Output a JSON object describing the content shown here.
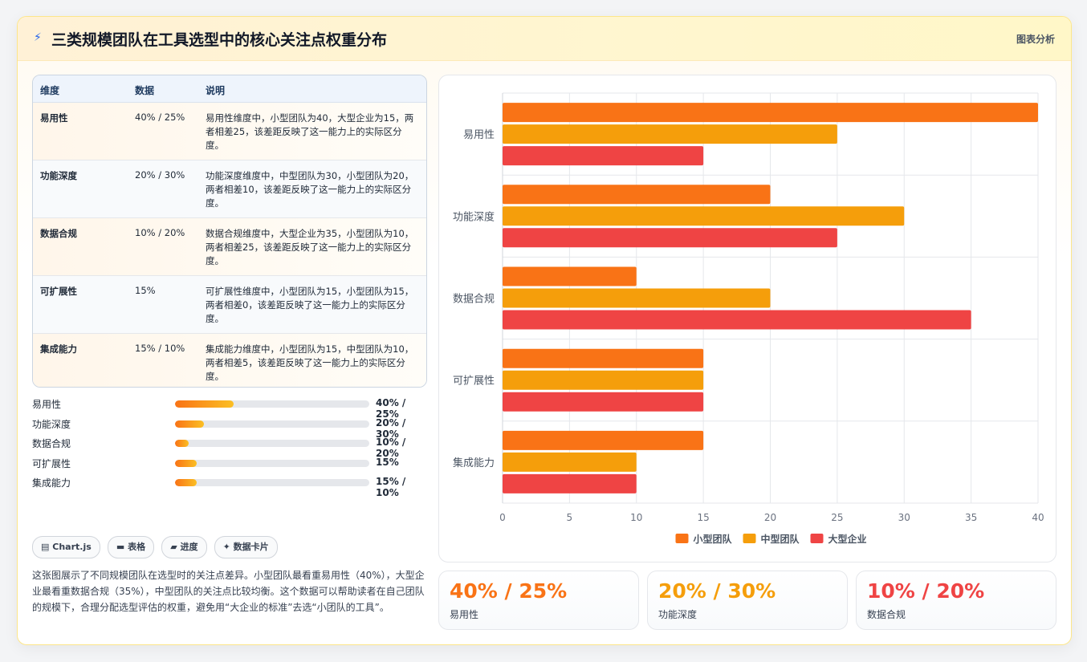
{
  "header": {
    "title": "三类规模团队在工具选型中的核心关注点权重分布",
    "tag": "图表分析"
  },
  "table": {
    "headers": [
      "维度",
      "数据",
      "说明"
    ],
    "rows": [
      {
        "dim": "易用性",
        "data": "40% / 25%",
        "note": "易用性维度中，小型团队为40，大型企业为15，两者相差25，该差距反映了这一能力上的实际区分度。"
      },
      {
        "dim": "功能深度",
        "data": "20% / 30%",
        "note": "功能深度维度中，中型团队为30，小型团队为20，两者相差10，该差距反映了这一能力上的实际区分度。"
      },
      {
        "dim": "数据合规",
        "data": "10% / 20%",
        "note": "数据合规维度中，大型企业为35，小型团队为10，两者相差25，该差距反映了这一能力上的实际区分度。"
      },
      {
        "dim": "可扩展性",
        "data": "15%",
        "note": "可扩展性维度中，小型团队为15，小型团队为15，两者相差0，该差距反映了这一能力上的实际区分度。"
      },
      {
        "dim": "集成能力",
        "data": "15% / 10%",
        "note": "集成能力维度中，小型团队为15，中型团队为10，两者相差5，该差距反映了这一能力上的实际区分度。"
      }
    ]
  },
  "progress": [
    {
      "label": "易用性",
      "value_text": "40% / 25%",
      "level": 0.3
    },
    {
      "label": "功能深度",
      "value_text": "20% / 30%",
      "level": 0.15
    },
    {
      "label": "数据合规",
      "value_text": "10% / 20%",
      "level": 0.07
    },
    {
      "label": "可扩展性",
      "value_text": "15%",
      "level": 0.11
    },
    {
      "label": "集成能力",
      "value_text": "15% / 10%",
      "level": 0.11
    }
  ],
  "chips": [
    {
      "icon": "chart-icon",
      "glyph": "▤",
      "label": "Chart.js"
    },
    {
      "icon": "table-icon",
      "glyph": "▬",
      "label": "表格"
    },
    {
      "icon": "progress-icon",
      "glyph": "▰",
      "label": "进度"
    },
    {
      "icon": "sparkle-icon",
      "glyph": "✦",
      "label": "数据卡片"
    }
  ],
  "description": "这张图展示了不同规模团队在选型时的关注点差异。小型团队最看重易用性（40%），大型企业最看重数据合规（35%），中型团队的关注点比较均衡。这个数据可以帮助读者在自己团队的规模下，合理分配选型评估的权重，避免用“大企业的标准”去选“小团队的工具”。",
  "stats": [
    {
      "value": "40% / 25%",
      "label": "易用性",
      "color": "#f97316"
    },
    {
      "value": "20% / 30%",
      "label": "功能深度",
      "color": "#f59e0b"
    },
    {
      "value": "10% / 20%",
      "label": "数据合规",
      "color": "#ef4444"
    }
  ],
  "chart_data": {
    "type": "bar",
    "orientation": "horizontal",
    "categories": [
      "易用性",
      "功能深度",
      "数据合规",
      "可扩展性",
      "集成能力"
    ],
    "series": [
      {
        "name": "小型团队",
        "values": [
          40,
          20,
          10,
          15,
          15
        ],
        "color": "#f97316"
      },
      {
        "name": "中型团队",
        "values": [
          25,
          30,
          20,
          15,
          10
        ],
        "color": "#f59e0b"
      },
      {
        "name": "大型企业",
        "values": [
          15,
          25,
          35,
          15,
          10
        ],
        "color": "#ef4444"
      }
    ],
    "xlim": [
      0,
      40
    ],
    "xticks": [
      0,
      5,
      10,
      15,
      20,
      25,
      30,
      35,
      40
    ],
    "grid": true,
    "legend": "bottom"
  }
}
